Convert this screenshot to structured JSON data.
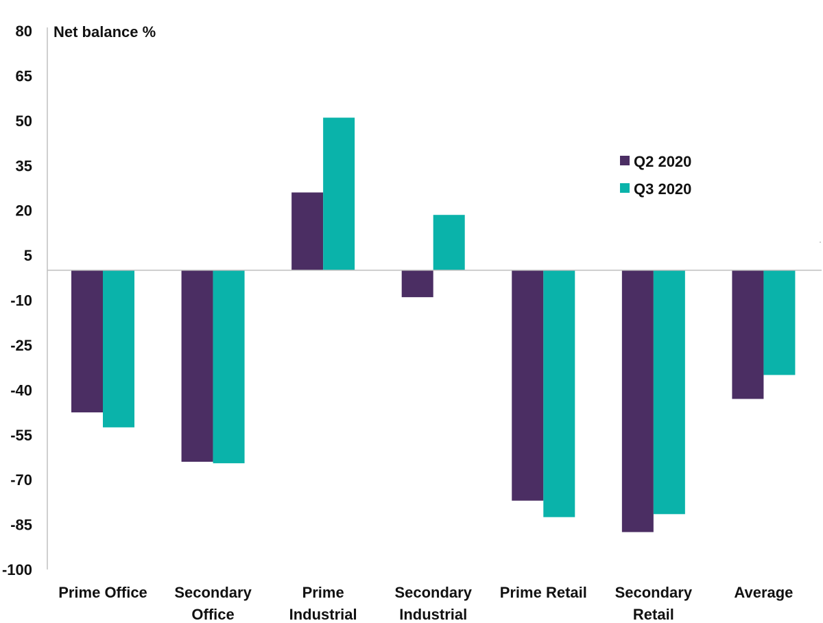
{
  "chart_data": {
    "type": "bar",
    "ylabel": "Net balance %",
    "ylim": [
      -100,
      80
    ],
    "yticks": [
      80,
      65,
      50,
      35,
      20,
      5,
      -10,
      -25,
      -40,
      -55,
      -70,
      -85,
      -100
    ],
    "categories": [
      [
        "Prime Office"
      ],
      [
        "Secondary",
        "Office"
      ],
      [
        "Prime",
        "Industrial"
      ],
      [
        "Secondary",
        "Industrial"
      ],
      [
        "Prime Retail"
      ],
      [
        "Secondary",
        "Retail"
      ],
      [
        "Average"
      ]
    ],
    "series": [
      {
        "name": "Q2 2020",
        "color": "#4b2e63",
        "values": [
          -47.5,
          -64,
          26,
          -9,
          -77,
          -87.5,
          -43
        ]
      },
      {
        "name": "Q3 2020",
        "color": "#0ab3aa",
        "values": [
          -52.5,
          -64.5,
          51,
          18.5,
          -82.5,
          -81.5,
          -35
        ]
      }
    ],
    "legend": "top-right",
    "grid": false
  }
}
